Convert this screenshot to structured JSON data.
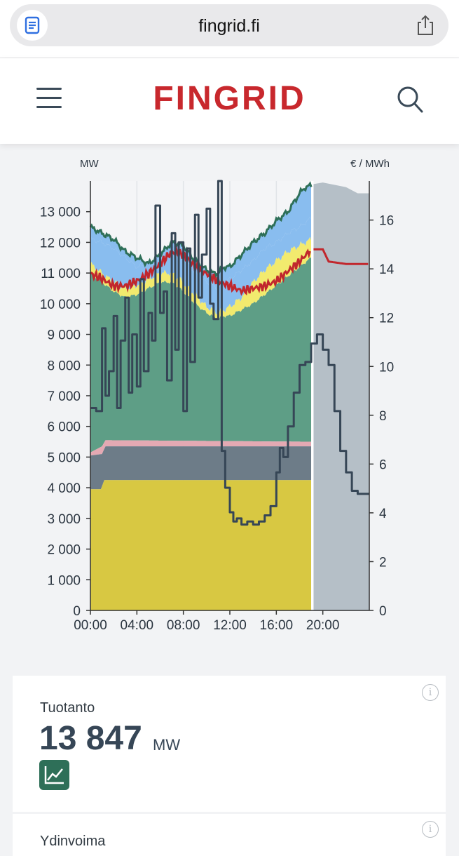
{
  "browser": {
    "url": "fingrid.fi",
    "reader_icon": "reader-icon",
    "share_icon": "share-icon"
  },
  "header": {
    "logo": "FINGRID",
    "menu_icon": "hamburger-menu-icon",
    "search_icon": "search-icon"
  },
  "chart_data": {
    "type": "area",
    "left_unit": "MW",
    "right_unit": "€ / MWh",
    "y_left_ticks": [
      "13 000",
      "12 000",
      "11 000",
      "10 000",
      "9 000",
      "8 000",
      "7 000",
      "6 000",
      "5 000",
      "4 000",
      "3 000",
      "2 000",
      "1 000",
      "0"
    ],
    "y_left_range": [
      0,
      14000
    ],
    "y_right_ticks": [
      "16",
      "14",
      "12",
      "10",
      "8",
      "6",
      "4",
      "2",
      "0"
    ],
    "y_right_range": [
      0,
      17.6
    ],
    "x_ticks": [
      "00:00",
      "04:00",
      "08:00",
      "12:00",
      "16:00",
      "20:00"
    ],
    "x_range_hours": [
      0,
      24
    ],
    "forecast_start_hour": 19,
    "colors": {
      "nuclear": "#d8c842",
      "hydro_grey": "#6d7c88",
      "pink": "#e4a9b3",
      "green": "#5e9e86",
      "yellow": "#f2ea6e",
      "blue": "#89bdef",
      "total_line": "#2e6f58",
      "price": "#c1272d",
      "dark_line": "#364656",
      "forecast": "#b5bfc7"
    },
    "series": [
      {
        "name": "nuclear",
        "x": [
          0,
          0.9,
          1.2,
          19
        ],
        "values": [
          3950,
          3950,
          4250,
          4250
        ]
      },
      {
        "name": "hydro_grey",
        "x": [
          0,
          1,
          1.3,
          19
        ],
        "values": [
          5050,
          5100,
          5350,
          5350
        ]
      },
      {
        "name": "pink",
        "x": [
          0,
          1,
          1.3,
          19
        ],
        "values": [
          5150,
          5350,
          5550,
          5500
        ]
      },
      {
        "name": "green_top",
        "x": [
          0,
          1,
          2,
          3,
          4,
          5,
          6,
          7,
          8,
          9,
          10,
          10.5,
          11,
          11.5,
          12,
          13,
          14,
          15,
          16,
          17,
          18,
          19
        ],
        "values": [
          11000,
          10700,
          10400,
          10200,
          10300,
          10500,
          10700,
          10700,
          10400,
          10000,
          9700,
          9600,
          9500,
          9600,
          9600,
          9800,
          10000,
          10300,
          10600,
          10900,
          11200,
          11500
        ]
      },
      {
        "name": "yellow_top",
        "x": [
          0,
          1,
          2,
          3,
          4,
          5,
          6,
          7,
          8,
          9,
          10,
          10.5,
          11,
          11.5,
          12,
          13,
          14,
          15,
          16,
          17,
          18,
          19
        ],
        "values": [
          11300,
          11000,
          10700,
          10500,
          10600,
          10800,
          11000,
          11000,
          10700,
          10300,
          9900,
          9800,
          9700,
          9800,
          9900,
          10200,
          10700,
          11100,
          11400,
          11700,
          11900,
          12100
        ]
      },
      {
        "name": "blue_top",
        "x": [
          0,
          1,
          2,
          3,
          4,
          5,
          6,
          7,
          8,
          9,
          10,
          10.5,
          11,
          11.5,
          12,
          13,
          14,
          15,
          16,
          17,
          18,
          19
        ],
        "values": [
          12100,
          12000,
          11800,
          11500,
          11200,
          11300,
          11500,
          11800,
          11500,
          11000,
          10700,
          10600,
          10500,
          10700,
          10800,
          11100,
          11400,
          11800,
          12000,
          12300,
          12500,
          12800
        ]
      },
      {
        "name": "total",
        "x": [
          0,
          1,
          2,
          3,
          4,
          5,
          6,
          7,
          8,
          9,
          10,
          10.5,
          11,
          11.5,
          12,
          13,
          14,
          15,
          16,
          17,
          18,
          18.5,
          19
        ],
        "values": [
          12500,
          12300,
          12100,
          11700,
          11500,
          11300,
          11600,
          12000,
          11900,
          11400,
          11100,
          11000,
          11000,
          11200,
          11200,
          11600,
          12000,
          12300,
          12700,
          13000,
          13600,
          13800,
          13847
        ]
      },
      {
        "name": "price",
        "x": [
          0,
          1,
          2,
          3,
          4,
          5,
          6,
          7,
          8,
          9,
          10,
          11,
          12,
          13,
          14,
          15,
          16,
          17,
          18,
          19,
          20,
          20.5,
          22,
          24
        ],
        "values": [
          13.8,
          13.6,
          13.3,
          13.3,
          13.5,
          13.8,
          14.2,
          14.7,
          14.6,
          14.1,
          13.8,
          13.5,
          13.3,
          13.1,
          13.2,
          13.3,
          13.5,
          13.9,
          14.3,
          14.8,
          14.8,
          14.3,
          14.2,
          14.2
        ]
      },
      {
        "name": "dark_line",
        "x": [
          0,
          0.5,
          1,
          1.3,
          1.6,
          2,
          2.3,
          2.6,
          3,
          3.3,
          3.6,
          4,
          4.3,
          4.6,
          5,
          5.3,
          5.6,
          6,
          6.3,
          6.6,
          7,
          7.3,
          7.6,
          8,
          8.3,
          8.6,
          9,
          9.3,
          9.6,
          10,
          10.3,
          10.6,
          11,
          11.3,
          11.6,
          12,
          12.3,
          12.6,
          13,
          13.5,
          14,
          14.5,
          15,
          15.5,
          16,
          16.3,
          16.6,
          17,
          17.5,
          18,
          18.5,
          19,
          19.5,
          20,
          20.5,
          21,
          21.5,
          22,
          22.5,
          23,
          23.5,
          24
        ],
        "values": [
          6600,
          6500,
          9200,
          7000,
          7800,
          9600,
          6600,
          8800,
          10200,
          7100,
          9000,
          7300,
          10800,
          7800,
          9700,
          8800,
          13200,
          9700,
          10400,
          7500,
          12300,
          8500,
          12000,
          6500,
          11800,
          8100,
          12900,
          10200,
          11600,
          13100,
          10000,
          9500,
          14000,
          5200,
          4000,
          3200,
          2900,
          3000,
          2800,
          2900,
          2800,
          2900,
          3100,
          3400,
          4500,
          5300,
          5000,
          6000,
          7100,
          8000,
          8100,
          8700,
          9000,
          8500,
          8000,
          6500,
          5200,
          4500,
          3900,
          3800,
          3800,
          3800
        ]
      }
    ]
  },
  "production": {
    "label": "Tuotanto",
    "value": "13 847",
    "unit": "MW",
    "chart_icon": "line-chart-icon",
    "info": "i"
  },
  "next_card": {
    "label": "Ydinvoima",
    "info": "i"
  }
}
